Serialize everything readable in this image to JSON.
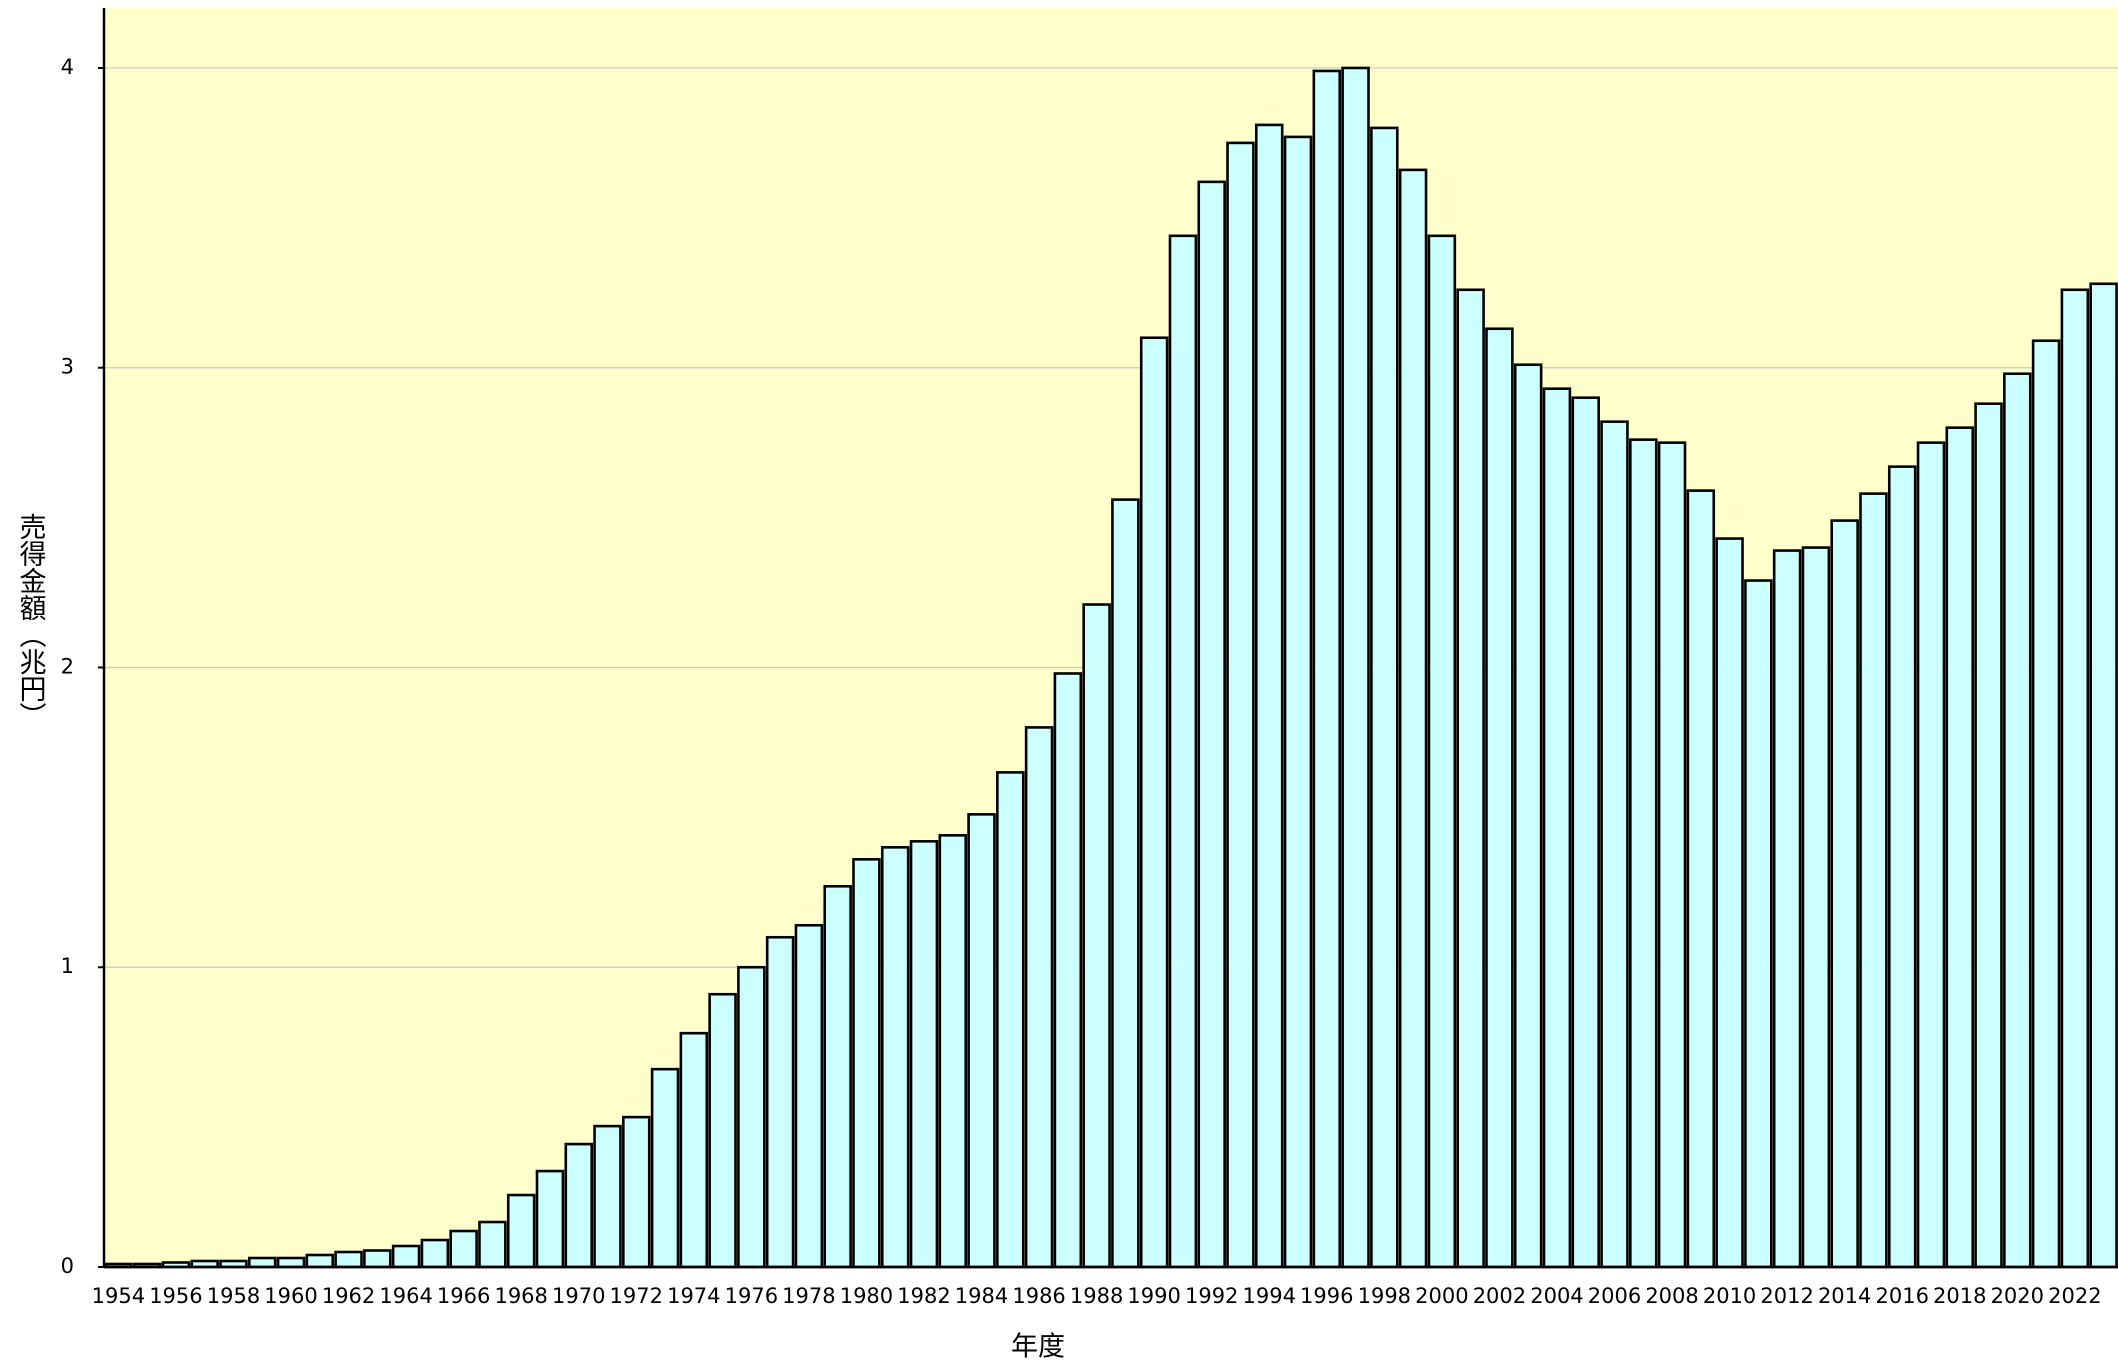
{
  "chart_data": {
    "type": "bar",
    "x_label": "年度",
    "y_label": "売得金額（兆円）",
    "categories": [
      "1954",
      null,
      "1956",
      null,
      "1958",
      null,
      "1960",
      null,
      "1962",
      null,
      "1964",
      null,
      "1966",
      null,
      "1968",
      null,
      "1970",
      null,
      "1972",
      null,
      "1974",
      null,
      "1976",
      null,
      "1978",
      null,
      "1980",
      null,
      "1982",
      null,
      "1984",
      null,
      "1986",
      null,
      "1988",
      null,
      "1990",
      null,
      "1992",
      null,
      "1994",
      null,
      "1996",
      null,
      "1998",
      null,
      "2000",
      null,
      "2002",
      null,
      "2004",
      null,
      "2006",
      null,
      "2008",
      null,
      "2010",
      null,
      "2012",
      null,
      "2014",
      null,
      "2016",
      null,
      "2018",
      null,
      "2020",
      null,
      "2022",
      null
    ],
    "values": [
      0.01,
      0.01,
      0.015,
      0.02,
      0.02,
      0.03,
      0.03,
      0.04,
      0.05,
      0.055,
      0.07,
      0.09,
      0.12,
      0.15,
      0.24,
      0.32,
      0.41,
      0.47,
      0.5,
      0.66,
      0.78,
      0.91,
      1.0,
      1.1,
      1.14,
      1.27,
      1.36,
      1.4,
      1.42,
      1.44,
      1.51,
      1.65,
      1.8,
      1.98,
      2.21,
      2.56,
      3.1,
      3.44,
      3.62,
      3.75,
      3.81,
      3.77,
      3.99,
      4.0,
      3.8,
      3.66,
      3.44,
      3.26,
      3.13,
      3.01,
      2.93,
      2.9,
      2.82,
      2.76,
      2.75,
      2.59,
      2.43,
      2.29,
      2.39,
      2.4,
      2.49,
      2.58,
      2.67,
      2.75,
      2.8,
      2.88,
      2.98,
      3.09,
      3.26,
      3.28
    ],
    "color": "#ccffff",
    "background": "#ffffcc",
    "ylim": [
      0,
      4.2
    ],
    "yticks": [
      0,
      1,
      2,
      3,
      4
    ],
    "grid": true
  }
}
